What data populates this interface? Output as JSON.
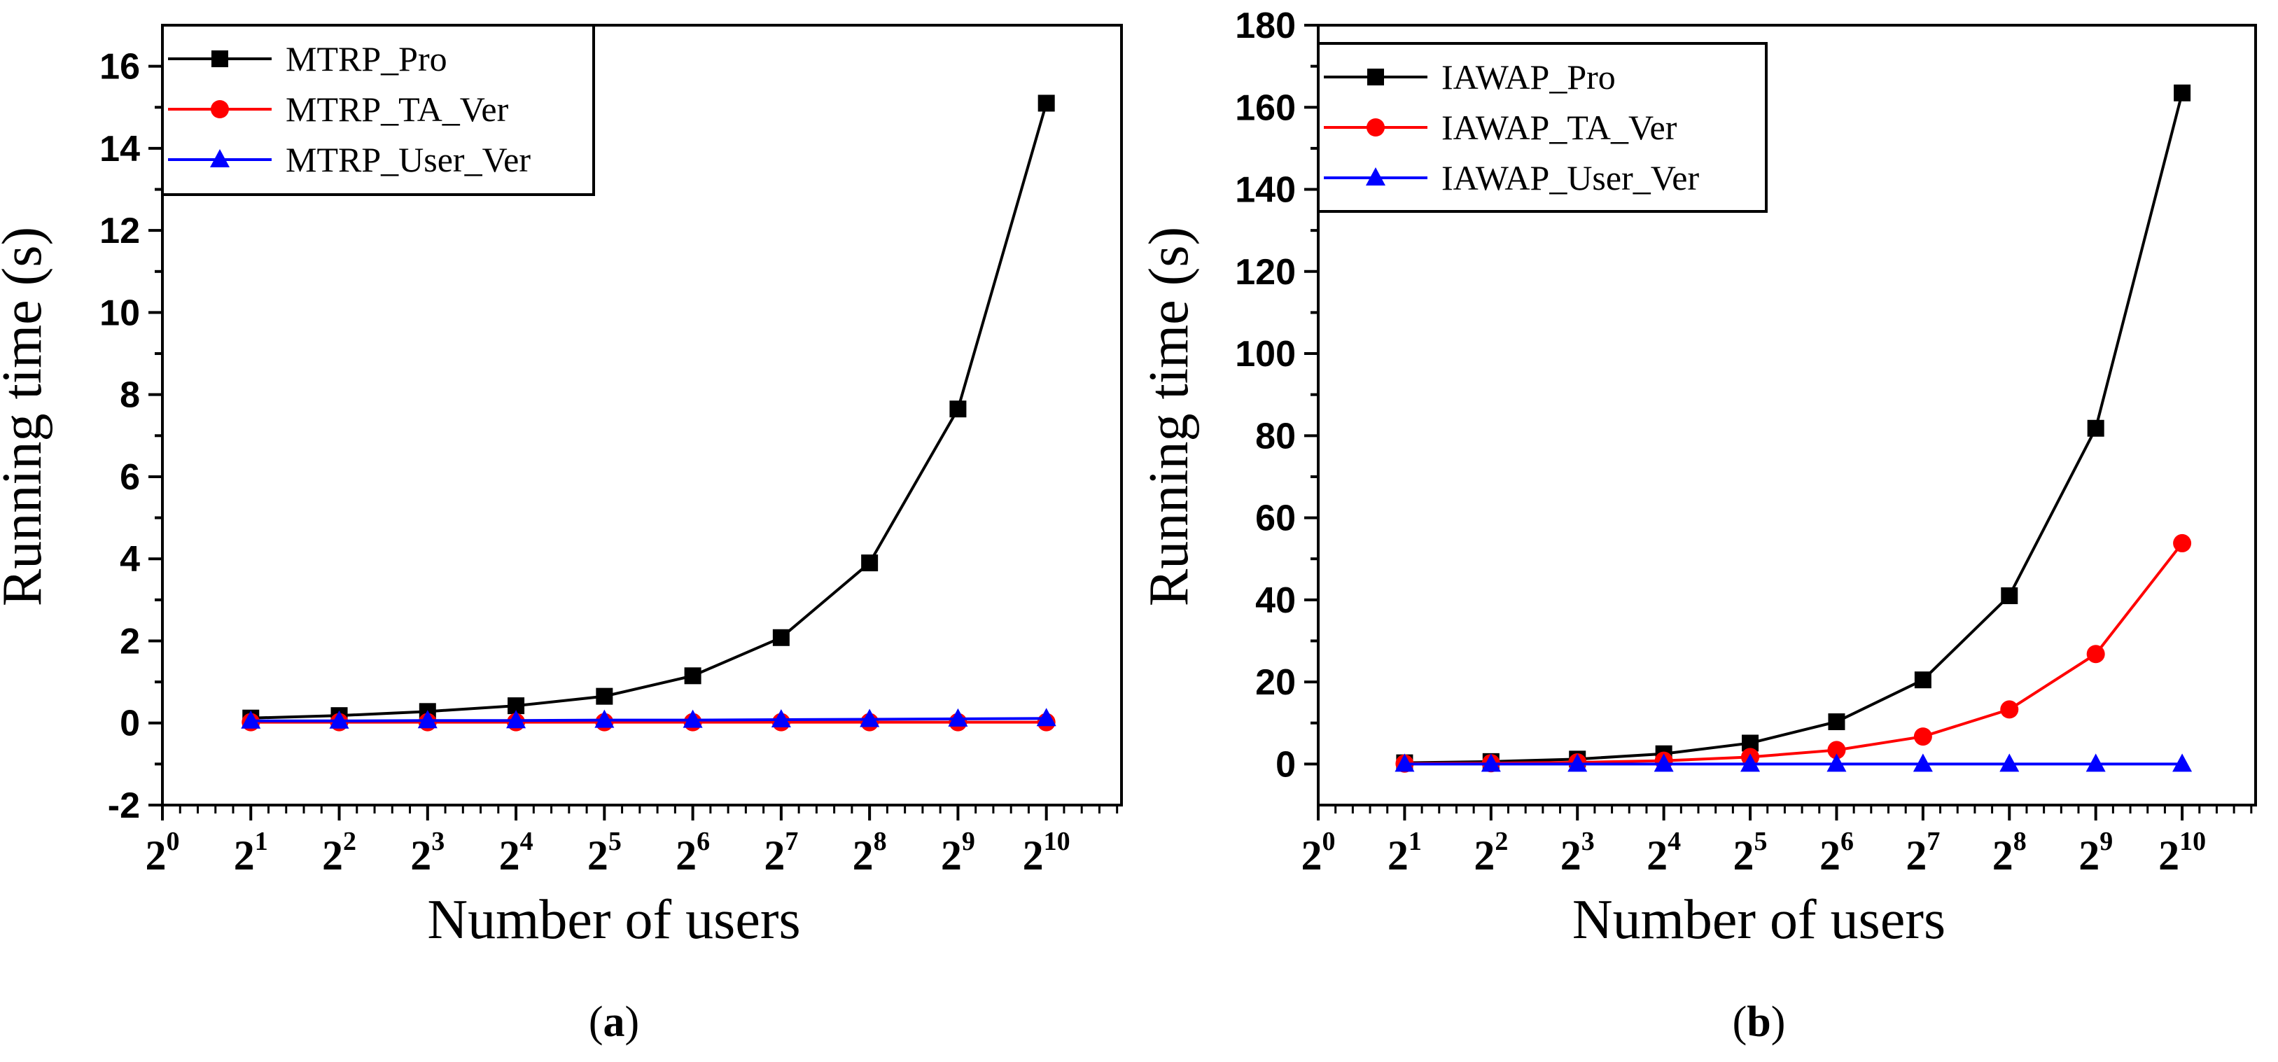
{
  "chart_data": [
    {
      "type": "line",
      "panel": "a",
      "caption": {
        "open": "(",
        "letter": "a",
        "close": ")"
      },
      "xlabel": "Number of users",
      "ylabel": "Running time (s)",
      "x_tick_base": "2",
      "x_ticks": [
        0,
        1,
        2,
        3,
        4,
        5,
        6,
        7,
        8,
        9,
        10
      ],
      "x_tick_labels": [
        "20",
        "21",
        "22",
        "23",
        "24",
        "25",
        "26",
        "27",
        "28",
        "29",
        "210"
      ],
      "xlim": [
        0,
        10.85
      ],
      "ylim": [
        -2,
        17
      ],
      "y_ticks": [
        -2,
        0,
        2,
        4,
        6,
        8,
        10,
        12,
        14,
        16
      ],
      "y_tick_labels": [
        "-2",
        "0",
        "2",
        "4",
        "6",
        "8",
        "10",
        "12",
        "14",
        "16"
      ],
      "x": [
        1,
        2,
        3,
        4,
        5,
        6,
        7,
        8,
        9,
        10
      ],
      "legend_position": "top-left",
      "series": [
        {
          "name": "MTRP_Pro",
          "color": "#000000",
          "marker": "square",
          "values": [
            0.12,
            0.18,
            0.28,
            0.42,
            0.65,
            1.15,
            2.08,
            3.9,
            7.65,
            15.1
          ]
        },
        {
          "name": "MTRP_TA_Ver",
          "color": "#ff0000",
          "marker": "circle",
          "values": [
            0.02,
            0.02,
            0.02,
            0.02,
            0.02,
            0.02,
            0.02,
            0.02,
            0.02,
            0.02
          ]
        },
        {
          "name": "MTRP_User_Ver",
          "color": "#0000ff",
          "marker": "triangle",
          "values": [
            0.05,
            0.05,
            0.06,
            0.06,
            0.07,
            0.07,
            0.08,
            0.09,
            0.1,
            0.11
          ]
        }
      ]
    },
    {
      "type": "line",
      "panel": "b",
      "caption": {
        "open": "(",
        "letter": "b",
        "close": ")"
      },
      "xlabel": "Number of users",
      "ylabel": "Running time (s)",
      "x_tick_base": "2",
      "x_ticks": [
        0,
        1,
        2,
        3,
        4,
        5,
        6,
        7,
        8,
        9,
        10
      ],
      "x_tick_labels": [
        "20",
        "21",
        "22",
        "23",
        "24",
        "25",
        "26",
        "27",
        "28",
        "29",
        "210"
      ],
      "xlim": [
        0,
        10.85
      ],
      "ylim": [
        -10,
        180
      ],
      "y_ticks": [
        0,
        20,
        40,
        60,
        80,
        100,
        120,
        140,
        160,
        180
      ],
      "y_tick_labels": [
        "0",
        "20",
        "40",
        "60",
        "80",
        "100",
        "120",
        "140",
        "160",
        "180"
      ],
      "x": [
        1,
        2,
        3,
        4,
        5,
        6,
        7,
        8,
        9,
        10
      ],
      "legend_position": "top-left",
      "series": [
        {
          "name": "IAWAP_Pro",
          "color": "#000000",
          "marker": "square",
          "values": [
            0.3,
            0.6,
            1.2,
            2.5,
            5.1,
            10.3,
            20.5,
            41.0,
            81.8,
            163.5
          ]
        },
        {
          "name": "IAWAP_TA_Ver",
          "color": "#ff0000",
          "marker": "circle",
          "values": [
            0.1,
            0.2,
            0.4,
            0.8,
            1.7,
            3.4,
            6.7,
            13.3,
            26.8,
            53.8
          ]
        },
        {
          "name": "IAWAP_User_Ver",
          "color": "#0000ff",
          "marker": "triangle",
          "values": [
            0.0,
            0.0,
            0.0,
            0.0,
            0.0,
            0.0,
            0.0,
            0.0,
            0.0,
            0.0
          ]
        }
      ]
    }
  ]
}
